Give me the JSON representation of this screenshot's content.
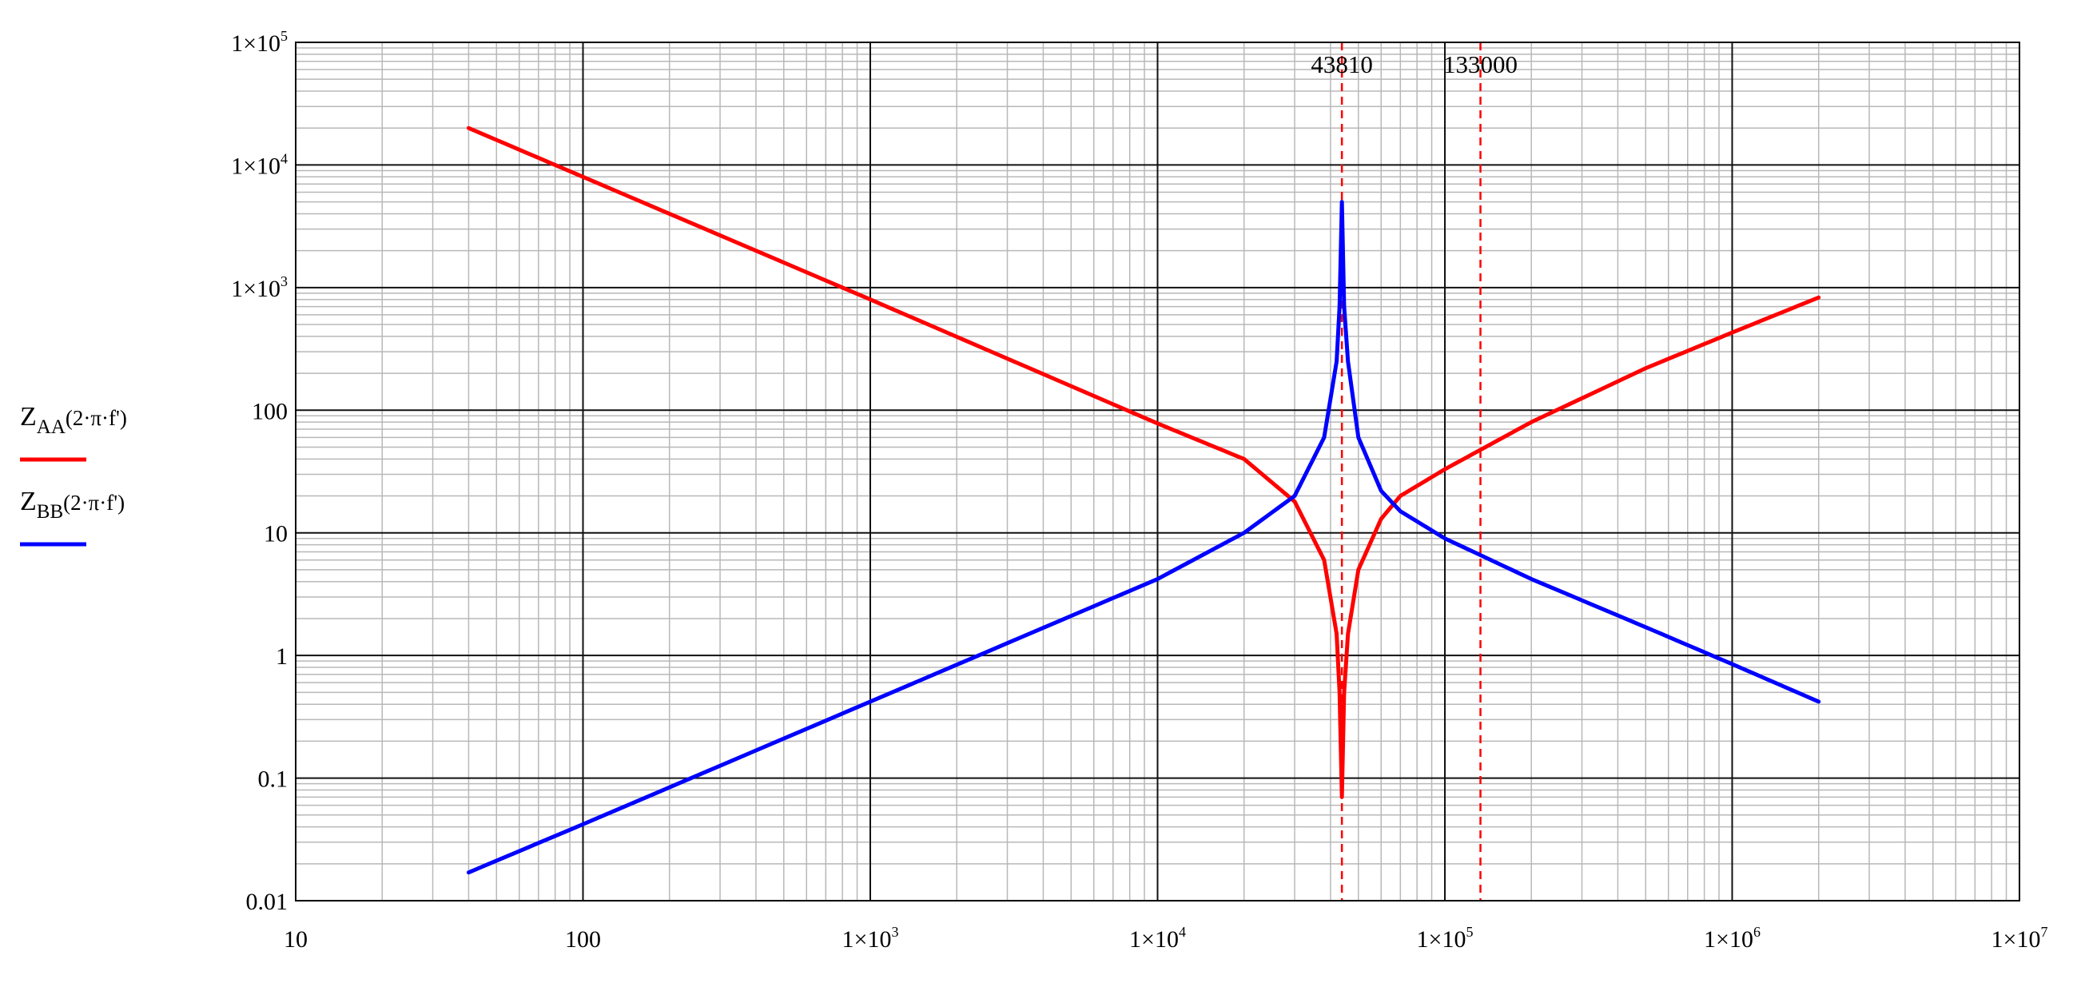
{
  "chart_data": {
    "type": "line",
    "x_scale": "log",
    "y_scale": "log",
    "xlim": [
      10,
      10000000
    ],
    "ylim": [
      0.01,
      100000
    ],
    "grid": true,
    "legend_placement": "left",
    "x_ticks": [
      {
        "value": 10,
        "mantissa": "10",
        "exp": ""
      },
      {
        "value": 100,
        "mantissa": "100",
        "exp": ""
      },
      {
        "value": 1000,
        "mantissa": "1×10",
        "exp": "3"
      },
      {
        "value": 10000,
        "mantissa": "1×10",
        "exp": "4"
      },
      {
        "value": 100000,
        "mantissa": "1×10",
        "exp": "5"
      },
      {
        "value": 1000000,
        "mantissa": "1×10",
        "exp": "6"
      },
      {
        "value": 10000000,
        "mantissa": "1×10",
        "exp": "7"
      }
    ],
    "y_ticks": [
      {
        "value": 100000,
        "mantissa": "1×10",
        "exp": "5"
      },
      {
        "value": 10000,
        "mantissa": "1×10",
        "exp": "4"
      },
      {
        "value": 1000,
        "mantissa": "1×10",
        "exp": "3"
      },
      {
        "value": 100,
        "mantissa": "100",
        "exp": ""
      },
      {
        "value": 10,
        "mantissa": "10",
        "exp": ""
      },
      {
        "value": 1,
        "mantissa": "1",
        "exp": ""
      },
      {
        "value": 0.1,
        "mantissa": "0.1",
        "exp": ""
      },
      {
        "value": 0.01,
        "mantissa": "0.01",
        "exp": ""
      }
    ],
    "markers": [
      {
        "x": 43810,
        "label": "43810",
        "color": "#ff0000"
      },
      {
        "x": 133000,
        "label": "133000",
        "color": "#ff0000"
      }
    ],
    "series": [
      {
        "name": "Z_AA(2·π·f')",
        "color": "#ff0000",
        "x": [
          40,
          100,
          1000,
          10000,
          20000,
          30000,
          38000,
          42000,
          43000,
          43810,
          44600,
          46000,
          50000,
          60000,
          70000,
          100000,
          200000,
          500000,
          1000000,
          2000000
        ],
        "y": [
          20000,
          8000,
          800,
          78,
          40,
          18,
          6,
          1.5,
          0.5,
          0.07,
          0.5,
          1.5,
          5,
          13,
          20,
          33,
          80,
          220,
          430,
          830
        ]
      },
      {
        "name": "Z_BB(2·π·f')",
        "color": "#0000ff",
        "x": [
          40,
          100,
          1000,
          10000,
          20000,
          30000,
          38000,
          42000,
          43000,
          43810,
          44600,
          46000,
          50000,
          60000,
          70000,
          100000,
          200000,
          500000,
          1000000,
          2000000
        ],
        "y": [
          0.017,
          0.042,
          0.42,
          4.2,
          10,
          20,
          60,
          250,
          700,
          5000,
          700,
          250,
          60,
          22,
          15,
          9,
          4.2,
          1.7,
          0.85,
          0.42
        ]
      }
    ]
  },
  "legend": [
    {
      "main": "Z",
      "sub": "AA",
      "args": "(2·π·f')",
      "color": "#ff0000"
    },
    {
      "main": "Z",
      "sub": "BB",
      "args": "(2·π·f')",
      "color": "#0000ff"
    }
  ]
}
